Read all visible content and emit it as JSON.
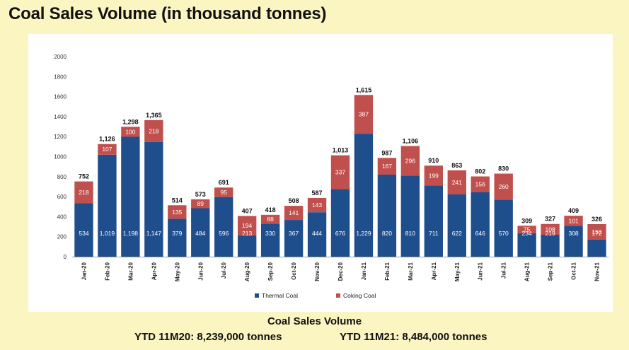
{
  "page": {
    "title": "Coal Sales Volume (in thousand tonnes)",
    "footer_title": "Coal Sales Volume",
    "ytd_left": "YTD 11M20: 8,239,000 tonnes",
    "ytd_right": "YTD 11M21: 8,484,000 tonnes"
  },
  "chart_data": {
    "type": "bar",
    "stacked": true,
    "title": "",
    "xlabel": "",
    "ylabel": "",
    "ylim": [
      0,
      2000
    ],
    "yticks": [
      0,
      200,
      400,
      600,
      800,
      1000,
      1200,
      1400,
      1600,
      1800,
      2000
    ],
    "grid": false,
    "legend": "bottom-center",
    "categories": [
      "Jan-20",
      "Feb-20",
      "Mar-20",
      "Apr-20",
      "May-20",
      "Jun-20",
      "Jul-20",
      "Aug-20",
      "Sep-20",
      "Oct-20",
      "Nov-20",
      "Dec-20",
      "Jan-21",
      "Feb-21",
      "Mar-21",
      "Apr-21",
      "May-21",
      "Jun-21",
      "Jul-21",
      "Aug-21",
      "Sep-21",
      "Oct-21",
      "Nov-21"
    ],
    "series": [
      {
        "name": "Thermal Coal",
        "color": "#1f4e8c",
        "values": [
          534,
          1019,
          1198,
          1147,
          379,
          484,
          596,
          213,
          330,
          367,
          444,
          676,
          1229,
          820,
          810,
          711,
          622,
          646,
          570,
          234,
          219,
          308,
          172
        ],
        "labels": [
          "534",
          "1,019",
          "1,198",
          "1,147",
          "379",
          "484",
          "596",
          "213",
          "330",
          "367",
          "444",
          "676",
          "1,229",
          "820",
          "810",
          "711",
          "622",
          "646",
          "570",
          "234",
          "219",
          "308",
          "172"
        ]
      },
      {
        "name": "Coking Coal",
        "color": "#c0504d",
        "values": [
          218,
          107,
          100,
          218,
          135,
          89,
          95,
          194,
          88,
          141,
          143,
          337,
          387,
          167,
          296,
          199,
          241,
          156,
          260,
          75,
          108,
          101,
          153
        ],
        "labels": [
          "218",
          "107",
          "100",
          "218",
          "135",
          "89",
          "95",
          "194",
          "88",
          "141",
          "143",
          "337",
          "387",
          "167",
          "296",
          "199",
          "241",
          "156",
          "260",
          "75",
          "108",
          "101",
          "153"
        ]
      }
    ],
    "totals": [
      752,
      1126,
      1298,
      1365,
      514,
      573,
      691,
      407,
      418,
      508,
      587,
      1013,
      1615,
      987,
      1106,
      910,
      863,
      802,
      830,
      309,
      327,
      409,
      326
    ],
    "total_labels": [
      "752",
      "1,126",
      "1,298",
      "1,365",
      "514",
      "573",
      "691",
      "407",
      "418",
      "508",
      "587",
      "1,013",
      "1,615",
      "987",
      "1,106",
      "910",
      "863",
      "802",
      "830",
      "309",
      "327",
      "409",
      "326"
    ]
  }
}
